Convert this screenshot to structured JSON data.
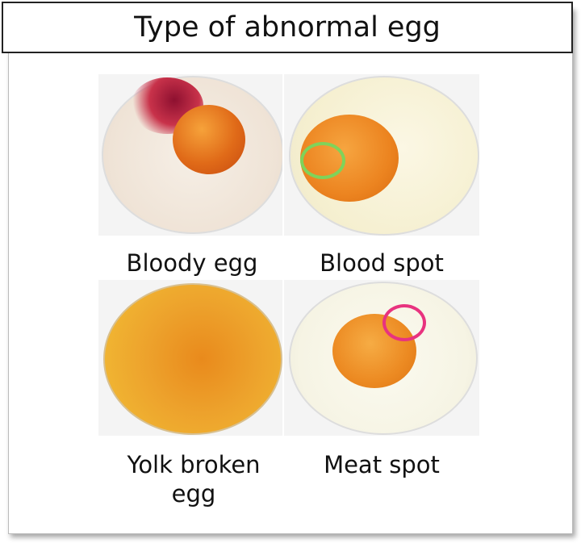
{
  "title": "Type of abnormal egg",
  "panels": [
    {
      "label": "Bloody egg",
      "image": "bloody-egg-photo"
    },
    {
      "label": "Blood spot",
      "image": "blood-spot-photo",
      "highlight_color": "#7fd35a"
    },
    {
      "label_line1": "Yolk broken",
      "label_line2": "egg",
      "image": "yolk-broken-egg-photo"
    },
    {
      "label": "Meat spot",
      "image": "meat-spot-photo",
      "highlight_color": "#e8337f"
    }
  ]
}
